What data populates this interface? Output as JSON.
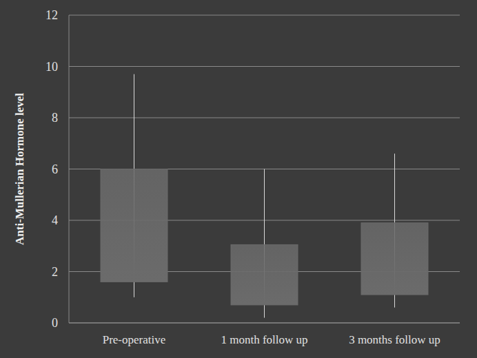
{
  "chart_data": {
    "type": "boxplot",
    "y_label": "Anti-Mullerian  Hormone level",
    "categories": [
      "Pre-operative",
      "1 month follow up",
      "3 months follow up"
    ],
    "whisker_low": [
      1.0,
      0.2,
      0.6
    ],
    "box_low": [
      1.6,
      0.7,
      1.1
    ],
    "box_high": [
      6.0,
      3.05,
      3.9
    ],
    "whisker_high": [
      9.7,
      6.0,
      6.6
    ],
    "color": "#6b6b6b",
    "ylim": [
      0,
      12
    ],
    "yticks": [
      0,
      2,
      4,
      6,
      8,
      10,
      12
    ],
    "grid": true
  }
}
